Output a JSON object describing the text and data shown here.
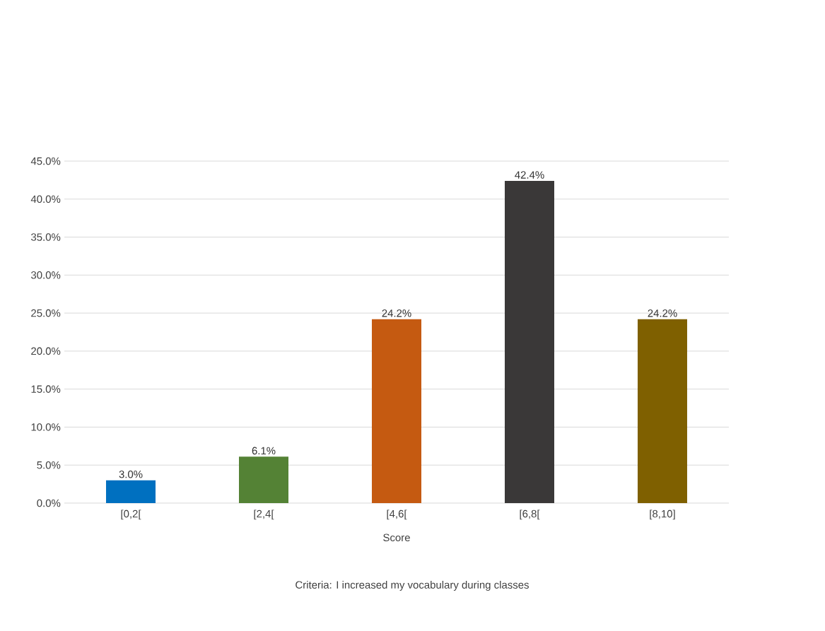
{
  "chart_data": {
    "type": "bar",
    "categories": [
      "[0,2[",
      "[2,4[",
      "[4,6[",
      "[6,8[",
      "[8,10]"
    ],
    "values": [
      3.0,
      6.1,
      24.2,
      42.4,
      24.2
    ],
    "colors": [
      "#0070c0",
      "#548235",
      "#c55a11",
      "#3a3838",
      "#7f6000"
    ],
    "value_labels": [
      "3.0%",
      "6.1%",
      "24.2%",
      "42.4%",
      "24.2%"
    ],
    "xlabel": "Score",
    "annotations": [
      "Criteria: I increased my vocabulary during classes"
    ],
    "ylim": [
      0,
      45
    ],
    "yticks": [
      {
        "value": 0,
        "label": "0.0%"
      },
      {
        "value": 5,
        "label": "5.0%"
      },
      {
        "value": 10,
        "label": "10.0%"
      },
      {
        "value": 15,
        "label": "15.0%"
      },
      {
        "value": 20,
        "label": "20.0%"
      },
      {
        "value": 25,
        "label": "25.0%"
      },
      {
        "value": 30,
        "label": "30.0%"
      },
      {
        "value": 35,
        "label": "35.0%"
      },
      {
        "value": 40,
        "label": "40.0%"
      },
      {
        "value": 45,
        "label": "45.0%"
      }
    ],
    "grid": "y"
  }
}
